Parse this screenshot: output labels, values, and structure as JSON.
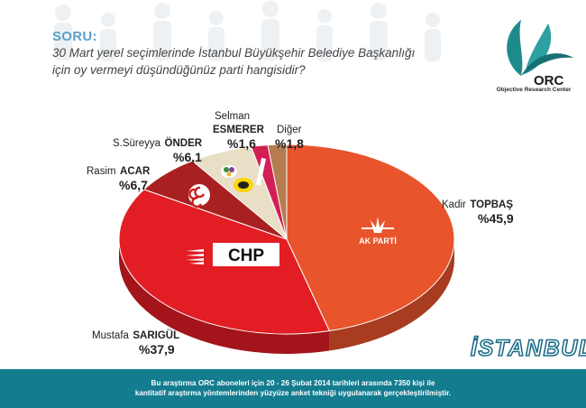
{
  "question": {
    "label": "SORU:",
    "line1": "30 Mart yerel seçimlerinde İstanbul Büyükşehir Belediye Başkanlığı",
    "line2": "için oy vermeyi düşündüğünüz parti hangisidir?"
  },
  "brand": {
    "logo_name": "ORC",
    "tagline": "Objective Research Center"
  },
  "city": "İSTANBUL",
  "footer": {
    "line1": "Bu araştırma ORC aboneleri için 20 - 26 Şubat 2014 tarihleri arasında  7350 kişi ile",
    "line2": "kantitatif araştırma yöntemlerinden yüzyüze anket tekniği  uygulanarak gerçekleştirilmiştir."
  },
  "party_logos": {
    "akp": "AK PARTİ",
    "chp": "CHP"
  },
  "colors": {
    "akp": "#e8542c",
    "chp": "#e21d24",
    "mhp": "#a8201f",
    "bdp": "#e8dfc6",
    "saadet": "#ffd400",
    "other_party": "#d31f55",
    "diger": "#b57d4f",
    "footer": "#137c8f",
    "accent": "#5aa0c8"
  },
  "chart_data": {
    "type": "pie",
    "title": "",
    "slices": [
      {
        "key": "akp",
        "first_name": "Kadir",
        "surname": "TOPBAŞ",
        "value": 45.9,
        "pct_label": "%45,9",
        "color": "#e8542c"
      },
      {
        "key": "chp",
        "first_name": "Mustafa",
        "surname": "SARIGÜL",
        "value": 37.9,
        "pct_label": "%37,9",
        "color": "#e21d24"
      },
      {
        "key": "mhp",
        "first_name": "Rasim",
        "surname": "ACAR",
        "value": 6.7,
        "pct_label": "%6,7",
        "color": "#a8201f"
      },
      {
        "key": "bdp",
        "first_name": "S.Süreyya",
        "surname": "ÖNDER",
        "value": 6.1,
        "pct_label": "%6,1",
        "color": "#e8dfc6"
      },
      {
        "key": "saadet",
        "first_name": "Selman",
        "surname": "ESMERER",
        "value": 1.6,
        "pct_label": "%1,6",
        "color": "#d31f55"
      },
      {
        "key": "diger",
        "first_name": "Diğer",
        "surname": "",
        "value": 1.8,
        "pct_label": "%1,8",
        "color": "#b57d4f"
      }
    ]
  }
}
